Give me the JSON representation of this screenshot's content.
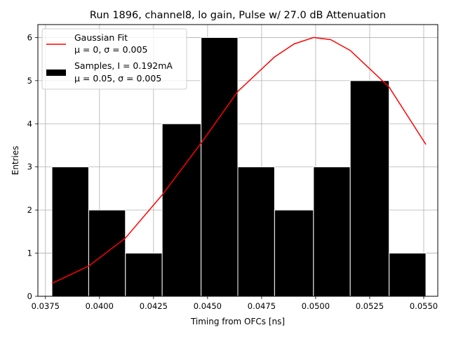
{
  "chart_data": {
    "type": "bar",
    "title": "Run 1896, channel8, lo gain, Pulse w/ 27.0 dB Attenuation",
    "xlabel": "Timing from OFCs [ns]",
    "ylabel": "Entries",
    "xlim": [
      0.03715,
      0.05565
    ],
    "ylim": [
      0,
      6.3
    ],
    "x_ticks": [
      "0.0375",
      "0.0400",
      "0.0425",
      "0.0450",
      "0.0475",
      "0.0500",
      "0.0525",
      "0.0550"
    ],
    "x_tick_values": [
      0.0375,
      0.04,
      0.0425,
      0.045,
      0.0475,
      0.05,
      0.0525,
      0.055
    ],
    "y_ticks": [
      "0",
      "1",
      "2",
      "3",
      "4",
      "5",
      "6"
    ],
    "y_tick_values": [
      0,
      1,
      2,
      3,
      4,
      5,
      6
    ],
    "grid": true,
    "legend_position": "top-left",
    "histogram": {
      "name": "Samples, I = 0.192mA",
      "name_line2": "μ = 0.05, σ = 0.005",
      "color": "#000000",
      "bin_edges": [
        0.0378,
        0.0395,
        0.0412,
        0.0429,
        0.0447,
        0.0464,
        0.0481,
        0.0499,
        0.0516,
        0.0534,
        0.0551
      ],
      "counts": [
        3,
        2,
        1,
        4,
        6,
        3,
        2,
        3,
        5,
        1
      ]
    },
    "fit": {
      "name": "Gaussian Fit",
      "name_line2": "μ = 0, σ = 0.005",
      "color": "#ff0000",
      "x": [
        0.0378,
        0.0395,
        0.0412,
        0.0429,
        0.0447,
        0.0464,
        0.0481,
        0.049,
        0.0499,
        0.0507,
        0.0516,
        0.0534,
        0.0551
      ],
      "y": [
        0.3,
        0.7,
        1.35,
        2.35,
        3.55,
        4.75,
        5.55,
        5.85,
        6.0,
        5.95,
        5.7,
        4.85,
        3.52
      ]
    }
  }
}
